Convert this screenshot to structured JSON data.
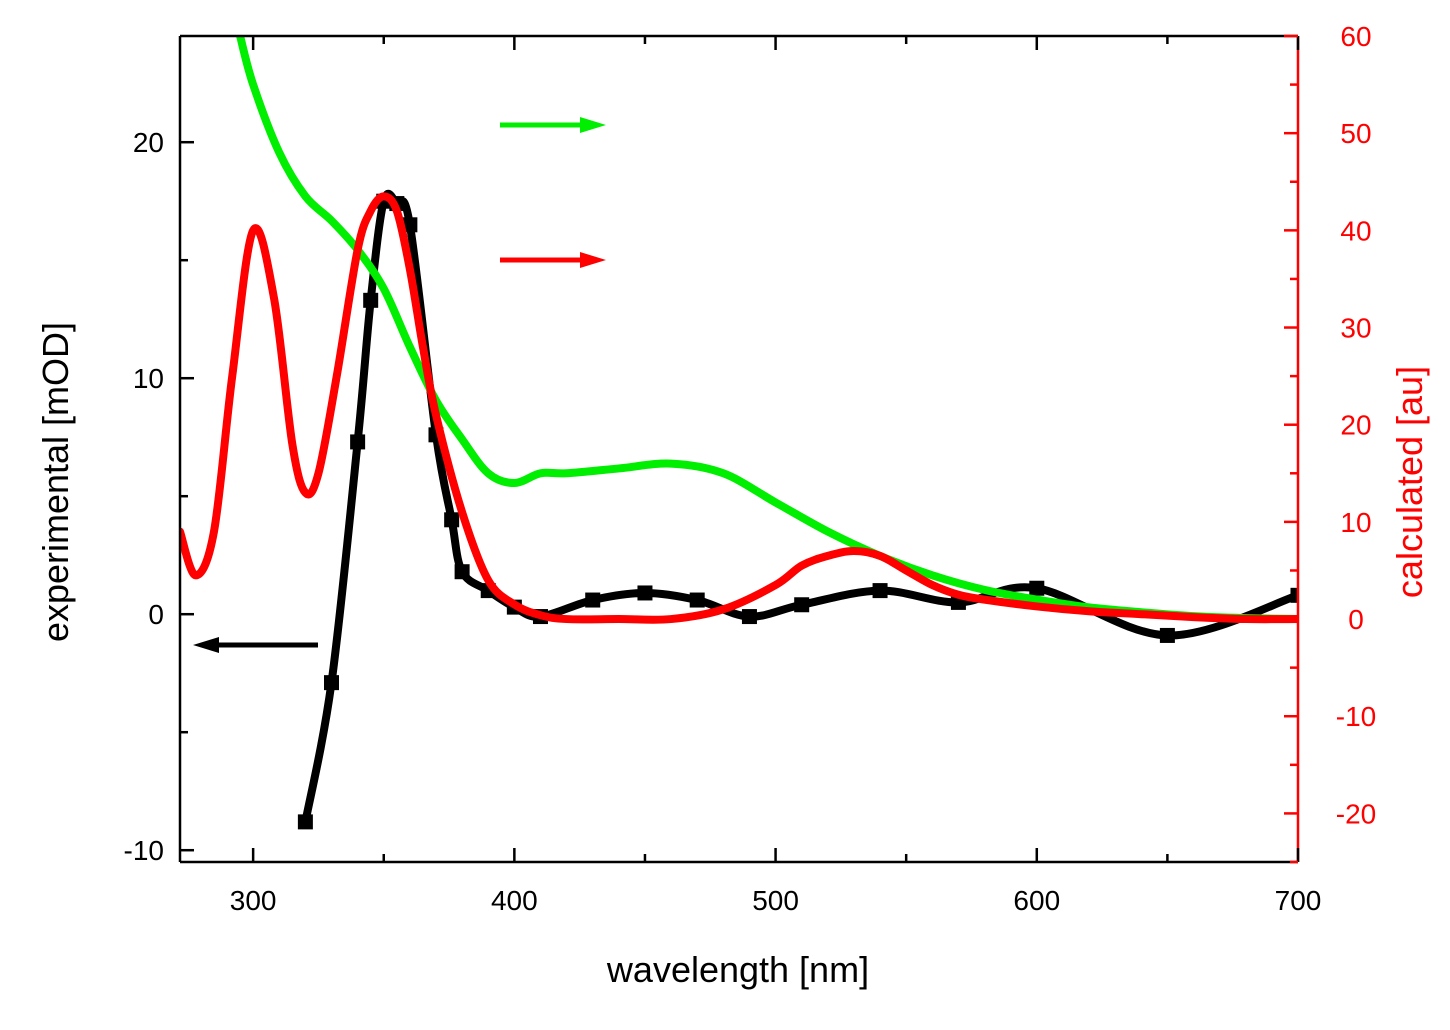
{
  "chart_data": {
    "type": "line",
    "title": "",
    "xlabel": "wavelength [nm]",
    "ylabel": "experimental [mOD]",
    "y2label": "calculated [au]",
    "xlim": [
      272,
      700
    ],
    "ylim": [
      -10.5,
      24.5
    ],
    "y2lim": [
      -25,
      60
    ],
    "xticks": [
      300,
      400,
      500,
      600,
      700
    ],
    "yticks": [
      -10,
      0,
      10,
      20
    ],
    "y2ticks": [
      -20,
      -10,
      0,
      10,
      20,
      30,
      40,
      50,
      60
    ],
    "grid": false,
    "colors": {
      "experimental": "#000000",
      "calculated_red": "#ff0000",
      "calculated_green": "#00ee00",
      "left_axis": "#000000",
      "right_axis": "#ff0000"
    },
    "arrows": [
      {
        "series": "experimental",
        "direction": "left",
        "points_to": "left axis"
      },
      {
        "series": "calculated_green",
        "direction": "right",
        "points_to": "right axis"
      },
      {
        "series": "calculated_red",
        "direction": "right",
        "points_to": "right axis"
      }
    ],
    "series": [
      {
        "name": "experimental",
        "axis": "left",
        "color": "#000000",
        "markers": "square",
        "x": [
          320,
          330,
          340,
          345,
          350,
          355,
          360,
          370,
          376,
          380,
          390,
          400,
          410,
          430,
          450,
          470,
          490,
          510,
          540,
          570,
          600,
          650,
          700
        ],
        "y": [
          -8.8,
          -2.9,
          7.3,
          13.3,
          17.5,
          17.4,
          16.5,
          7.6,
          4.0,
          1.8,
          1.0,
          0.3,
          -0.1,
          0.6,
          0.9,
          0.6,
          -0.1,
          0.4,
          1.0,
          0.5,
          1.1,
          -0.9,
          0.8
        ]
      },
      {
        "name": "calculated_green",
        "axis": "right",
        "color": "#00ee00",
        "x": [
          295,
          300,
          310,
          320,
          330,
          340,
          350,
          360,
          370,
          380,
          390,
          400,
          410,
          420,
          440,
          460,
          480,
          500,
          520,
          540,
          560,
          580,
          600,
          620,
          640,
          660,
          680,
          700
        ],
        "y": [
          60,
          55,
          48,
          43.5,
          41,
          38,
          34,
          28,
          22.5,
          18.5,
          15,
          14,
          15,
          15,
          15.5,
          16,
          15,
          12,
          9,
          6.5,
          4.5,
          3,
          2,
          1.2,
          0.7,
          0.3,
          0.1,
          0
        ]
      },
      {
        "name": "calculated_red",
        "axis": "right",
        "color": "#ff0000",
        "x": [
          272,
          278,
          285,
          292,
          300,
          308,
          315,
          320,
          325,
          332,
          340,
          345,
          350,
          355,
          360,
          365,
          370,
          380,
          390,
          400,
          410,
          420,
          440,
          460,
          480,
          500,
          510,
          520,
          530,
          540,
          550,
          560,
          570,
          580,
          600,
          620,
          640,
          660,
          680,
          700
        ],
        "y": [
          9,
          4.5,
          9,
          25,
          40,
          33,
          18,
          13,
          15,
          25,
          38,
          42,
          43.5,
          42,
          36,
          28,
          21,
          11,
          4,
          1.5,
          0.4,
          0,
          0,
          0,
          1,
          3.5,
          5.5,
          6.5,
          7,
          6.5,
          5,
          3.5,
          2.5,
          2,
          1.3,
          0.8,
          0.5,
          0.2,
          0,
          0
        ]
      }
    ]
  }
}
